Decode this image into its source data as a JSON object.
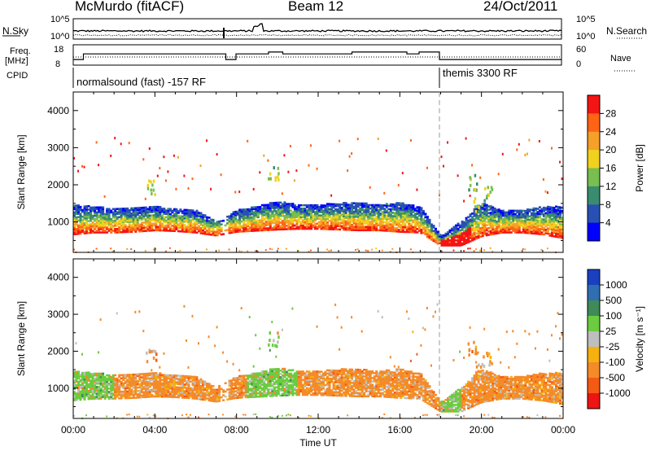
{
  "header": {
    "radar": "McMurdo (fitACF)",
    "beam": "Beam 12",
    "date": "24/Oct/2011"
  },
  "chart_data": [
    {
      "type": "line",
      "title": "",
      "ylabel_left": "N.Sky",
      "ylabel_right": "N.Search",
      "yticks_left": [
        "10^5",
        "10^0"
      ],
      "yticks_right": [
        "10^5",
        "10^0"
      ],
      "xlim": [
        "00:00",
        "24:00"
      ],
      "note": "Sky noise (solid) and search noise (dotted), log scale"
    },
    {
      "type": "line",
      "ylabel_left": "Freq. [MHz]",
      "ylabel_right": "Nave",
      "yticks_left": [
        "18",
        "8"
      ],
      "yticks_right": [
        "60",
        "0"
      ],
      "series": [
        {
          "name": "Freq.",
          "x": [
            0,
            0.5,
            7.3,
            7.5,
            8.0,
            9.6,
            10.3,
            13.0,
            13.7,
            16.4,
            17.0,
            17.6,
            18.0,
            24.0
          ],
          "values": [
            11,
            14,
            14,
            11,
            14,
            15,
            14,
            14,
            15,
            14,
            15,
            15,
            11,
            11
          ]
        }
      ]
    },
    {
      "type": "table",
      "label": "CPID",
      "segments": [
        {
          "start": "00:00",
          "end": "18:00",
          "text": "normalsound (fast) -157 RF"
        },
        {
          "start": "18:00",
          "end": "24:00",
          "text": "themis 3300 RF"
        }
      ]
    },
    {
      "type": "heatmap",
      "ylabel": "Slant Range [km]",
      "ylim": [
        180,
        4500
      ],
      "yticks": [
        1000,
        2000,
        3000,
        4000
      ],
      "colorbar_label": "Power [dB]",
      "colorbar_ticks": [
        "4",
        "8",
        "12",
        "16",
        "20",
        "24",
        "28"
      ],
      "colorbar_range": [
        0,
        30
      ],
      "colors": [
        "#0000ff",
        "#2850b4",
        "#3a8c6e",
        "#78be50",
        "#f0d21e",
        "#f5a028",
        "#ff6414",
        "#f51414"
      ],
      "echo_band": {
        "times": [
          0,
          1,
          2,
          3,
          4,
          5,
          6,
          7,
          8,
          9,
          10,
          11,
          12,
          13,
          14,
          15,
          16,
          17,
          18,
          19,
          20,
          21,
          22,
          23,
          24
        ],
        "lower_km": [
          650,
          700,
          700,
          720,
          760,
          740,
          700,
          620,
          720,
          750,
          780,
          800,
          800,
          780,
          760,
          760,
          720,
          700,
          350,
          350,
          600,
          700,
          700,
          650,
          550
        ],
        "upper_km": [
          1450,
          1400,
          1350,
          1350,
          1400,
          1350,
          1300,
          1000,
          1300,
          1400,
          1550,
          1450,
          1450,
          1500,
          1500,
          1450,
          1500,
          1400,
          600,
          1000,
          1500,
          1300,
          1300,
          1400,
          1400
        ]
      }
    },
    {
      "type": "heatmap",
      "ylabel": "Slant Range [km]",
      "ylim": [
        180,
        4500
      ],
      "yticks": [
        1000,
        2000,
        3000,
        4000
      ],
      "xlabel": "Time UT",
      "xticks": [
        "00:00",
        "04:00",
        "08:00",
        "12:00",
        "16:00",
        "20:00",
        "00:00"
      ],
      "colorbar_label": "Velocity [m s⁻¹]",
      "colorbar_ticks": [
        "1000",
        "500",
        "100",
        "25",
        "-25",
        "-100",
        "-500",
        "-1000"
      ],
      "colors": [
        "#1a40c0",
        "#2f6eb0",
        "#3f8a58",
        "#6acc3e",
        "#bebebe",
        "#f5b20f",
        "#f58a28",
        "#f55a14",
        "#ee1414"
      ],
      "dominant_by_time": [
        {
          "start": 0,
          "end": 2,
          "class": "100"
        },
        {
          "start": 2,
          "end": 8.5,
          "class": "-100"
        },
        {
          "start": 8.5,
          "end": 11,
          "class": "100"
        },
        {
          "start": 11,
          "end": 18,
          "class": "-100"
        },
        {
          "start": 18,
          "end": 19,
          "class": "100"
        },
        {
          "start": 19,
          "end": 24,
          "class": "-100"
        }
      ]
    }
  ]
}
